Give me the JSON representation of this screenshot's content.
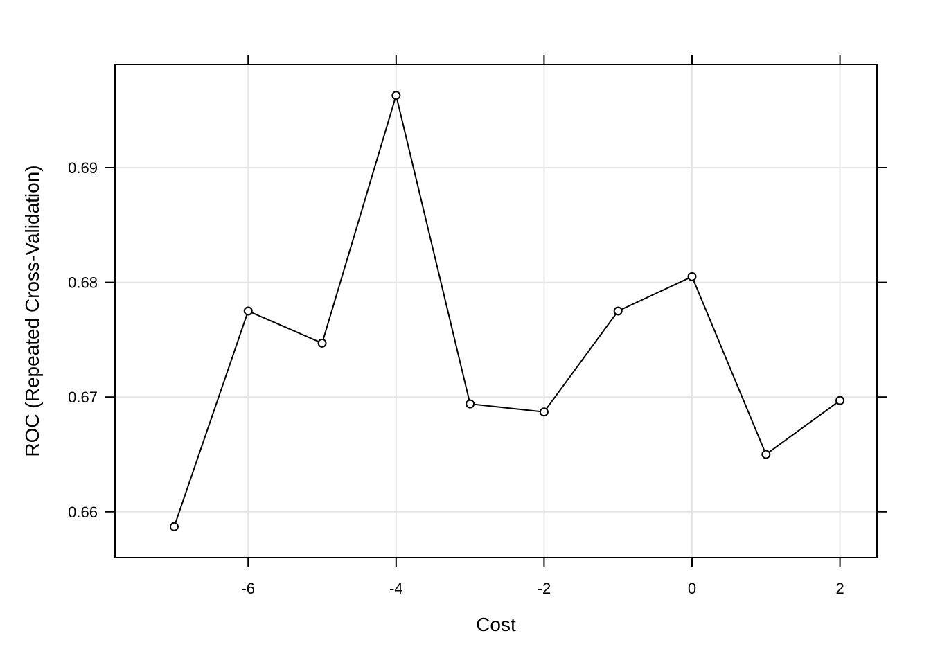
{
  "chart_data": {
    "type": "line",
    "title": "",
    "xlabel": "Cost",
    "ylabel": "ROC (Repeated Cross-Validation)",
    "xlim": [
      -7.8,
      2.5
    ],
    "ylim": [
      0.656,
      0.699
    ],
    "grid": true,
    "x_ticks": [
      -6,
      -4,
      -2,
      0,
      2
    ],
    "x_tick_labels": [
      "-6",
      "-4",
      "-2",
      "0",
      "2"
    ],
    "y_ticks": [
      0.66,
      0.67,
      0.68,
      0.69
    ],
    "y_tick_labels": [
      "0.66",
      "0.67",
      "0.68",
      "0.69"
    ],
    "marker": "open-circle",
    "line_color": "#000000",
    "grid_color": "#e6e6e6",
    "series": [
      {
        "x": [
          -7,
          -6,
          -5,
          -4,
          -3,
          -2,
          -1,
          0,
          1,
          2
        ],
        "y": [
          0.6587,
          0.6775,
          0.6747,
          0.6963,
          0.6694,
          0.6687,
          0.6775,
          0.6805,
          0.665,
          0.6697
        ]
      }
    ]
  }
}
